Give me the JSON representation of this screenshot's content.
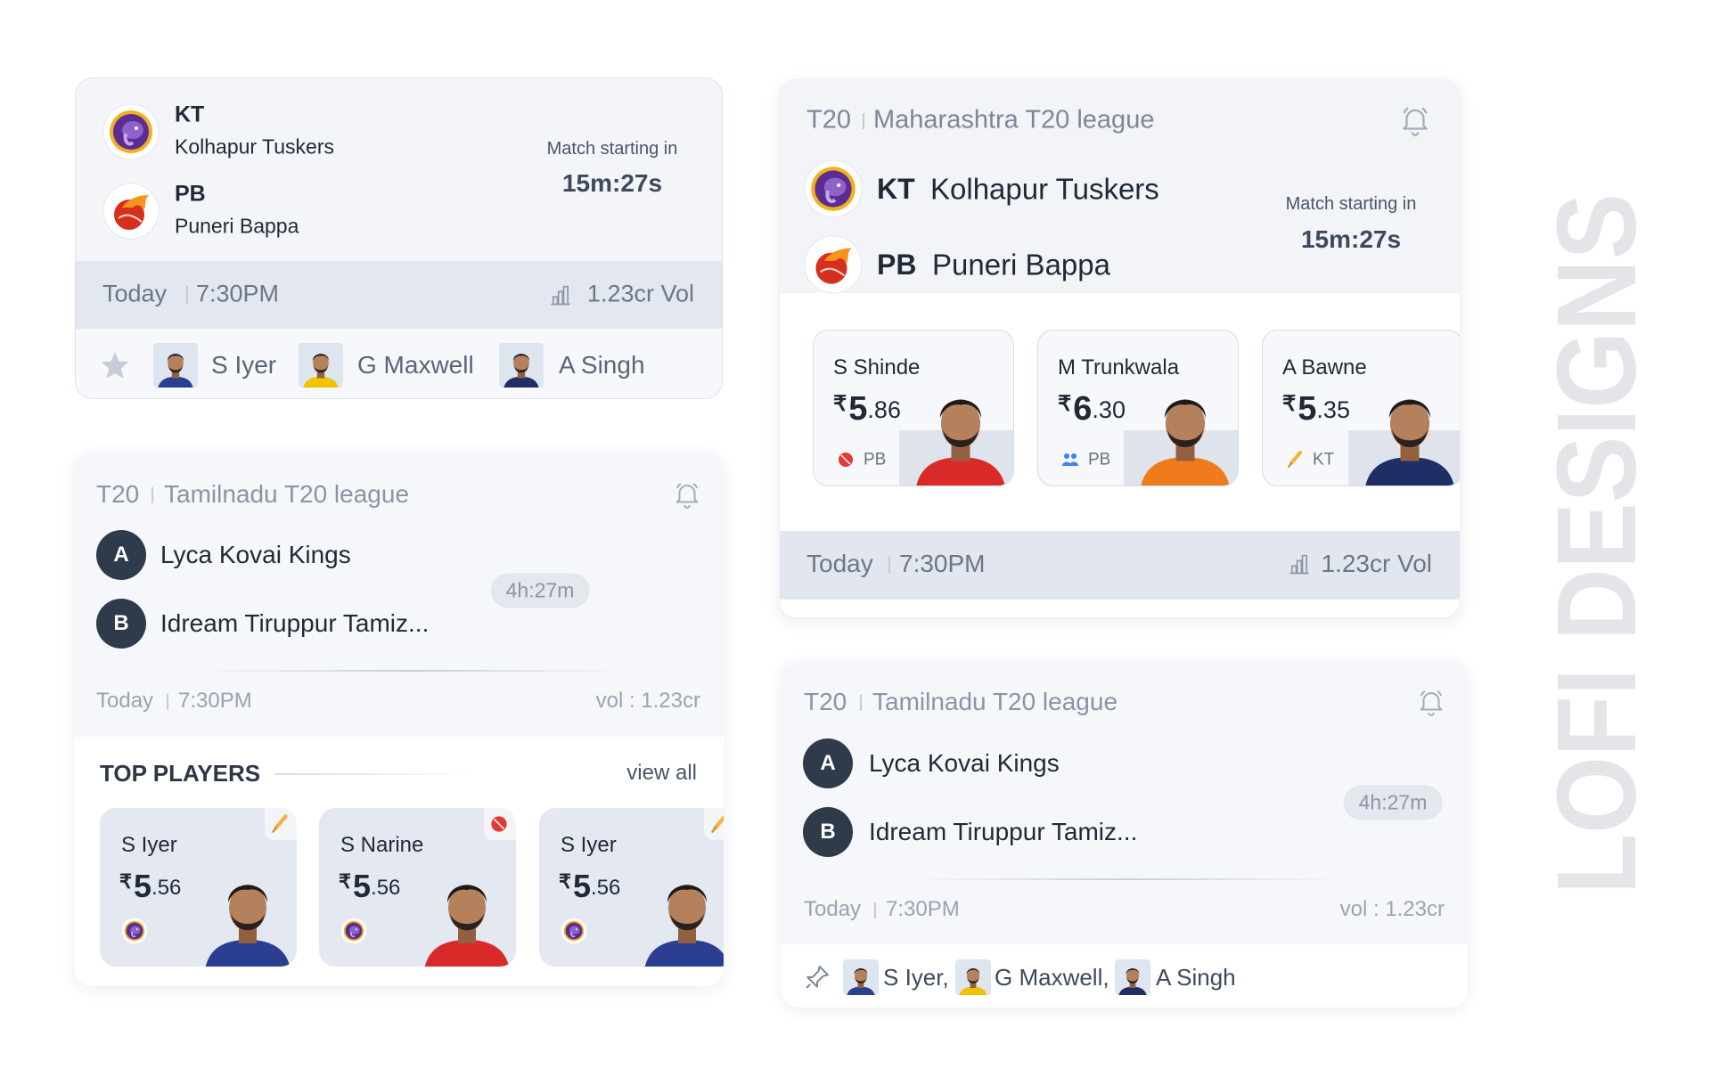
{
  "card_small": {
    "teams": [
      {
        "code": "KT",
        "name": "Kolhapur Tuskers"
      },
      {
        "code": "PB",
        "name": "Puneri Bappa"
      }
    ],
    "countdown_label": "Match starting in",
    "countdown": "15m:27s",
    "day": "Today",
    "time": "7:30PM",
    "volume": "1.23cr Vol",
    "players": [
      "S Iyer",
      "G Maxwell",
      "A Singh"
    ]
  },
  "card_top_players": {
    "format": "T20",
    "league": "Tamilnadu T20 league",
    "teams": [
      {
        "badge": "A",
        "name": "Lyca Kovai Kings"
      },
      {
        "badge": "B",
        "name": "Idream Tiruppur Tamiz..."
      }
    ],
    "countdown": "4h:27m",
    "day": "Today",
    "time": "7:30PM",
    "volume": "vol : 1.23cr",
    "section_title": "TOP PLAYERS",
    "view_all": "view all",
    "players": [
      {
        "name": "S Iyer",
        "currency": "₹",
        "whole": "5",
        "fraction": ".56"
      },
      {
        "name": "S Narine",
        "currency": "₹",
        "whole": "5",
        "fraction": ".56"
      },
      {
        "name": "S Iyer",
        "currency": "₹",
        "whole": "5",
        "fraction": ".56"
      }
    ]
  },
  "card_featured": {
    "format": "T20",
    "league": "Maharashtra T20 league",
    "teams": [
      {
        "code": "KT",
        "name": "Kolhapur Tuskers"
      },
      {
        "code": "PB",
        "name": "Puneri Bappa"
      }
    ],
    "countdown_label": "Match starting in",
    "countdown": "15m:27s",
    "players": [
      {
        "name": "S Shinde",
        "currency": "₹",
        "whole": "5",
        "fraction": ".86",
        "team": "PB"
      },
      {
        "name": "M Trunkwala",
        "currency": "₹",
        "whole": "6",
        "fraction": ".30",
        "team": "PB"
      },
      {
        "name": "A Bawne",
        "currency": "₹",
        "whole": "5",
        "fraction": ".35",
        "team": "KT"
      }
    ],
    "day": "Today",
    "time": "7:30PM",
    "volume": "1.23cr Vol"
  },
  "card_compact": {
    "format": "T20",
    "league": "Tamilnadu T20 league",
    "teams": [
      {
        "badge": "A",
        "name": "Lyca Kovai Kings"
      },
      {
        "badge": "B",
        "name": "Idream Tiruppur Tamiz..."
      }
    ],
    "countdown": "4h:27m",
    "day": "Today",
    "time": "7:30PM",
    "volume": "vol : 1.23cr",
    "players": [
      "S Iyer,",
      "G Maxwell,",
      "A Singh"
    ]
  },
  "watermark": "LOFI DESIGNS"
}
